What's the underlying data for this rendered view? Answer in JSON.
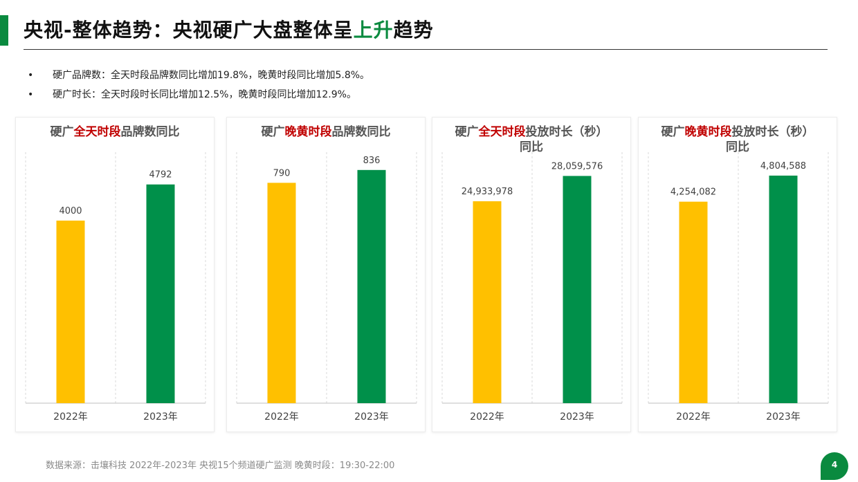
{
  "header": {
    "title_prefix": "央视-整体趋势：央视硬广大盘整体呈",
    "title_highlight": "上升",
    "title_suffix": "趋势"
  },
  "bullets": [
    "硬广品牌数：全天时段品牌数同比增加19.8%，晚黄时段同比增加5.8%。",
    "硬广时长：全天时段时长同比增加12.5%，晚黄时段同比增加12.9%。"
  ],
  "bullet_marker": "•",
  "colors": {
    "brand_green": "#0a8a3f",
    "bar_2022": "#ffc000",
    "bar_2023": "#00904a",
    "title_red": "#c00000"
  },
  "panels": [
    {
      "title": {
        "pre": "硬广",
        "red": "全天时段",
        "post": "品牌数同比",
        "line2": ""
      },
      "chart_data": {
        "type": "bar",
        "categories": [
          "2022年",
          "2023年"
        ],
        "values": [
          4000,
          4792
        ],
        "value_labels": [
          "4000",
          "4792"
        ],
        "ylim": [
          0,
          5500
        ]
      }
    },
    {
      "title": {
        "pre": "硬广",
        "red": "晚黄时段",
        "post": "品牌数同比",
        "line2": ""
      },
      "chart_data": {
        "type": "bar",
        "categories": [
          "2022年",
          "2023年"
        ],
        "values": [
          790,
          836
        ],
        "value_labels": [
          "790",
          "836"
        ],
        "ylim": [
          0,
          900
        ]
      }
    },
    {
      "title": {
        "pre": "硬广",
        "red": "全天时段",
        "post": "投放时长（秒）",
        "line2": "同比"
      },
      "chart_data": {
        "type": "bar",
        "categories": [
          "2022年",
          "2023年"
        ],
        "values": [
          24933978,
          28059576
        ],
        "value_labels": [
          "24,933,978",
          "28,059,576"
        ],
        "ylim": [
          0,
          31000000
        ]
      }
    },
    {
      "title": {
        "pre": "硬广",
        "red": "晚黄时段",
        "post": "投放时长（秒）",
        "line2": "同比"
      },
      "chart_data": {
        "type": "bar",
        "categories": [
          "2022年",
          "2023年"
        ],
        "values": [
          4254082,
          4804588
        ],
        "value_labels": [
          "4,254,082",
          "4,804,588"
        ],
        "ylim": [
          0,
          5300000
        ]
      }
    }
  ],
  "footer": "数据来源：击壤科技  2022年-2023年 央视15个频道硬广监测    晚黄时段：19:30-22:00",
  "page_number": "4"
}
